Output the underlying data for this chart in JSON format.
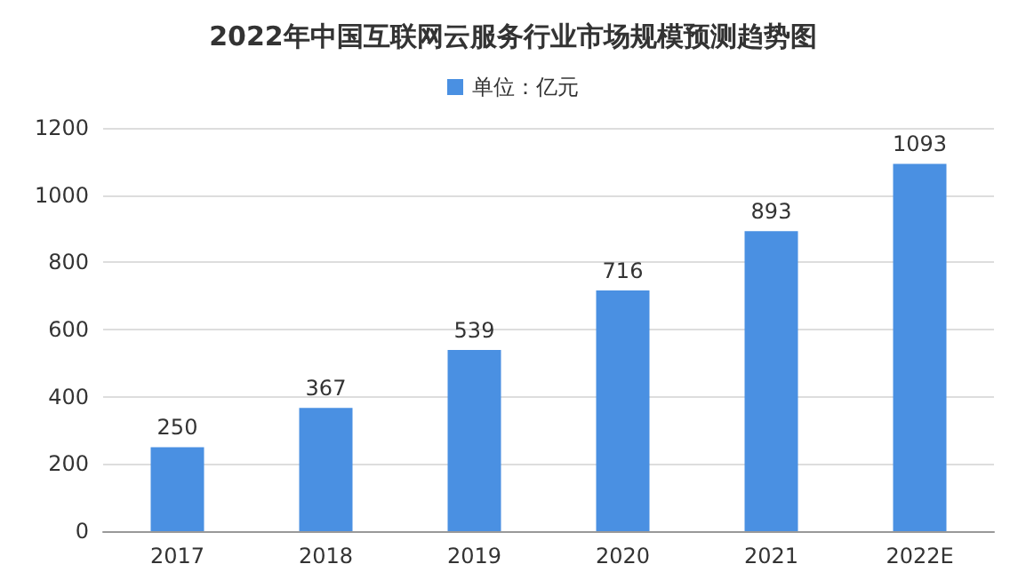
{
  "chart_data": {
    "type": "bar",
    "title": "2022年中国互联网云服务行业市场规模预测趋势图",
    "categories": [
      "2017",
      "2018",
      "2019",
      "2020",
      "2021",
      "2022E"
    ],
    "series": [
      {
        "name": "单位：亿元",
        "color": "#4a90e2",
        "values": [
          250,
          367,
          539,
          716,
          893,
          1093
        ]
      }
    ],
    "ylim": [
      0,
      1200
    ],
    "yticks": [
      0,
      200,
      400,
      600,
      800,
      1000,
      1200
    ],
    "grid": "y",
    "legend": "top",
    "data_labels": true
  }
}
